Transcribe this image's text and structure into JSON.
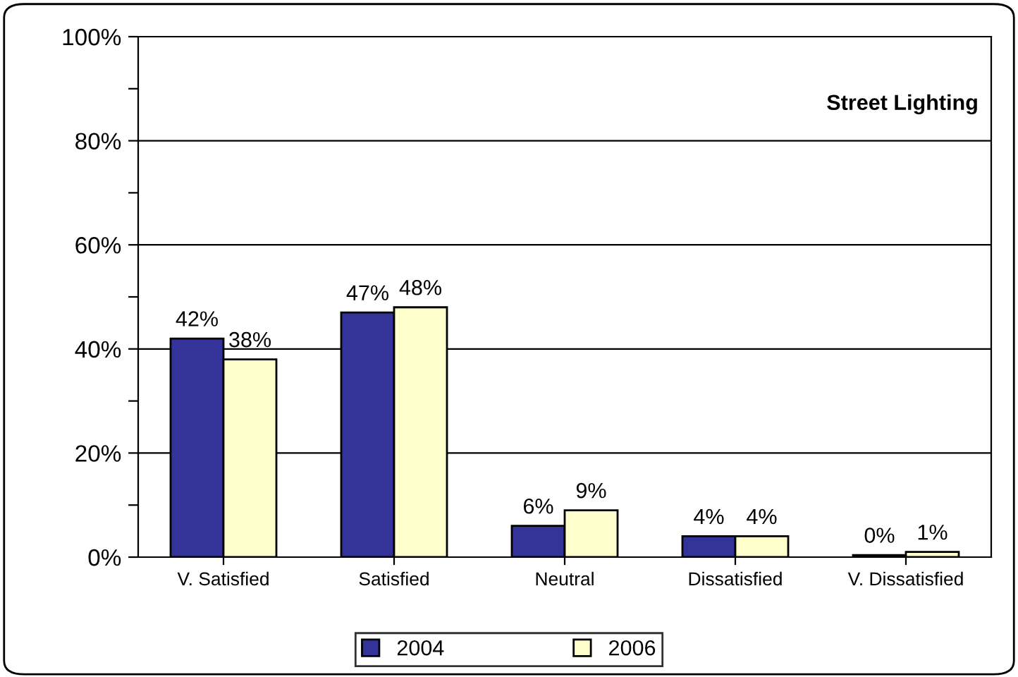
{
  "chart_data": {
    "type": "bar",
    "title": "Street Lighting",
    "categories": [
      "V. Satisfied",
      "Satisfied",
      "Neutral",
      "Dissatisfied",
      "V. Dissatisfied"
    ],
    "series": [
      {
        "name": "2004",
        "color": "#333399",
        "values": [
          42,
          47,
          6,
          4,
          0.4
        ],
        "value_labels": [
          "42%",
          "47%",
          "6%",
          "4%",
          "0%"
        ]
      },
      {
        "name": "2006",
        "color": "#ffffcc",
        "values": [
          38,
          48,
          9,
          4,
          1
        ],
        "value_labels": [
          "38%",
          "48%",
          "9%",
          "4%",
          "1%"
        ]
      }
    ],
    "ylim": [
      0,
      100
    ],
    "yticks": [
      {
        "value": 0,
        "label": "0%"
      },
      {
        "value": 10,
        "label": null
      },
      {
        "value": 20,
        "label": "20%"
      },
      {
        "value": 30,
        "label": null
      },
      {
        "value": 40,
        "label": "40%"
      },
      {
        "value": 50,
        "label": null
      },
      {
        "value": 60,
        "label": "60%"
      },
      {
        "value": 70,
        "label": null
      },
      {
        "value": 80,
        "label": "80%"
      },
      {
        "value": 90,
        "label": null
      },
      {
        "value": 100,
        "label": "100%"
      }
    ],
    "grid": "y",
    "legend": "bottom"
  }
}
